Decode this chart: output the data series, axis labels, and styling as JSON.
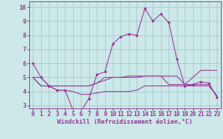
{
  "xlabel": "Windchill (Refroidissement éolien,°C)",
  "bg_color": "#cce8e8",
  "grid_color": "#99cccc",
  "line_color": "#993399",
  "xlim": [
    -0.5,
    23.5
  ],
  "ylim": [
    2.8,
    10.4
  ],
  "yticks": [
    3,
    4,
    5,
    6,
    7,
    8,
    9,
    10
  ],
  "xticks": [
    0,
    1,
    2,
    3,
    4,
    5,
    6,
    7,
    8,
    9,
    10,
    11,
    12,
    13,
    14,
    15,
    16,
    17,
    18,
    19,
    20,
    21,
    22,
    23
  ],
  "line1_x": [
    0,
    1,
    2,
    3,
    4,
    5,
    6,
    7,
    8,
    9,
    10,
    11,
    12,
    13,
    14,
    15,
    16,
    17,
    18,
    19,
    20,
    21,
    22,
    23
  ],
  "line1_y": [
    6.0,
    5.0,
    4.4,
    4.1,
    4.1,
    2.7,
    2.6,
    3.5,
    5.2,
    5.4,
    7.4,
    7.9,
    8.1,
    8.0,
    9.9,
    9.0,
    9.5,
    8.9,
    6.3,
    4.4,
    4.5,
    4.7,
    4.6,
    3.6
  ],
  "line2_x": [
    0,
    1,
    2,
    3,
    4,
    5,
    6,
    7,
    8,
    9,
    10,
    11,
    12,
    13,
    14,
    15,
    16,
    17,
    18,
    19,
    20,
    21,
    22,
    23
  ],
  "line2_y": [
    5.0,
    5.0,
    4.4,
    4.4,
    4.4,
    4.4,
    4.4,
    4.4,
    4.6,
    5.0,
    5.0,
    5.0,
    5.0,
    5.0,
    5.1,
    5.1,
    5.1,
    5.1,
    5.1,
    4.5,
    5.0,
    5.5,
    5.5,
    5.5
  ],
  "line3_x": [
    0,
    1,
    2,
    3,
    4,
    5,
    6,
    7,
    8,
    9,
    10,
    11,
    12,
    13,
    14,
    15,
    16,
    17,
    18,
    19,
    20,
    21,
    22,
    23
  ],
  "line3_y": [
    5.0,
    4.4,
    4.4,
    4.4,
    4.4,
    4.4,
    4.4,
    4.4,
    4.6,
    4.8,
    5.0,
    5.0,
    5.1,
    5.1,
    5.1,
    5.1,
    5.1,
    4.5,
    4.5,
    4.5,
    4.5,
    4.5,
    4.5,
    3.7
  ],
  "line4_x": [
    0,
    1,
    2,
    3,
    4,
    5,
    6,
    7,
    8,
    9,
    10,
    11,
    12,
    13,
    14,
    15,
    16,
    17,
    18,
    19,
    20,
    21,
    22,
    23
  ],
  "line4_y": [
    5.0,
    4.4,
    4.4,
    4.1,
    4.1,
    4.0,
    3.8,
    3.8,
    3.9,
    4.0,
    4.0,
    4.0,
    4.0,
    4.1,
    4.4,
    4.4,
    4.4,
    4.4,
    4.4,
    4.4,
    4.4,
    4.4,
    4.4,
    3.7
  ],
  "tick_fontsize": 6.0,
  "xlabel_fontsize": 6.2
}
